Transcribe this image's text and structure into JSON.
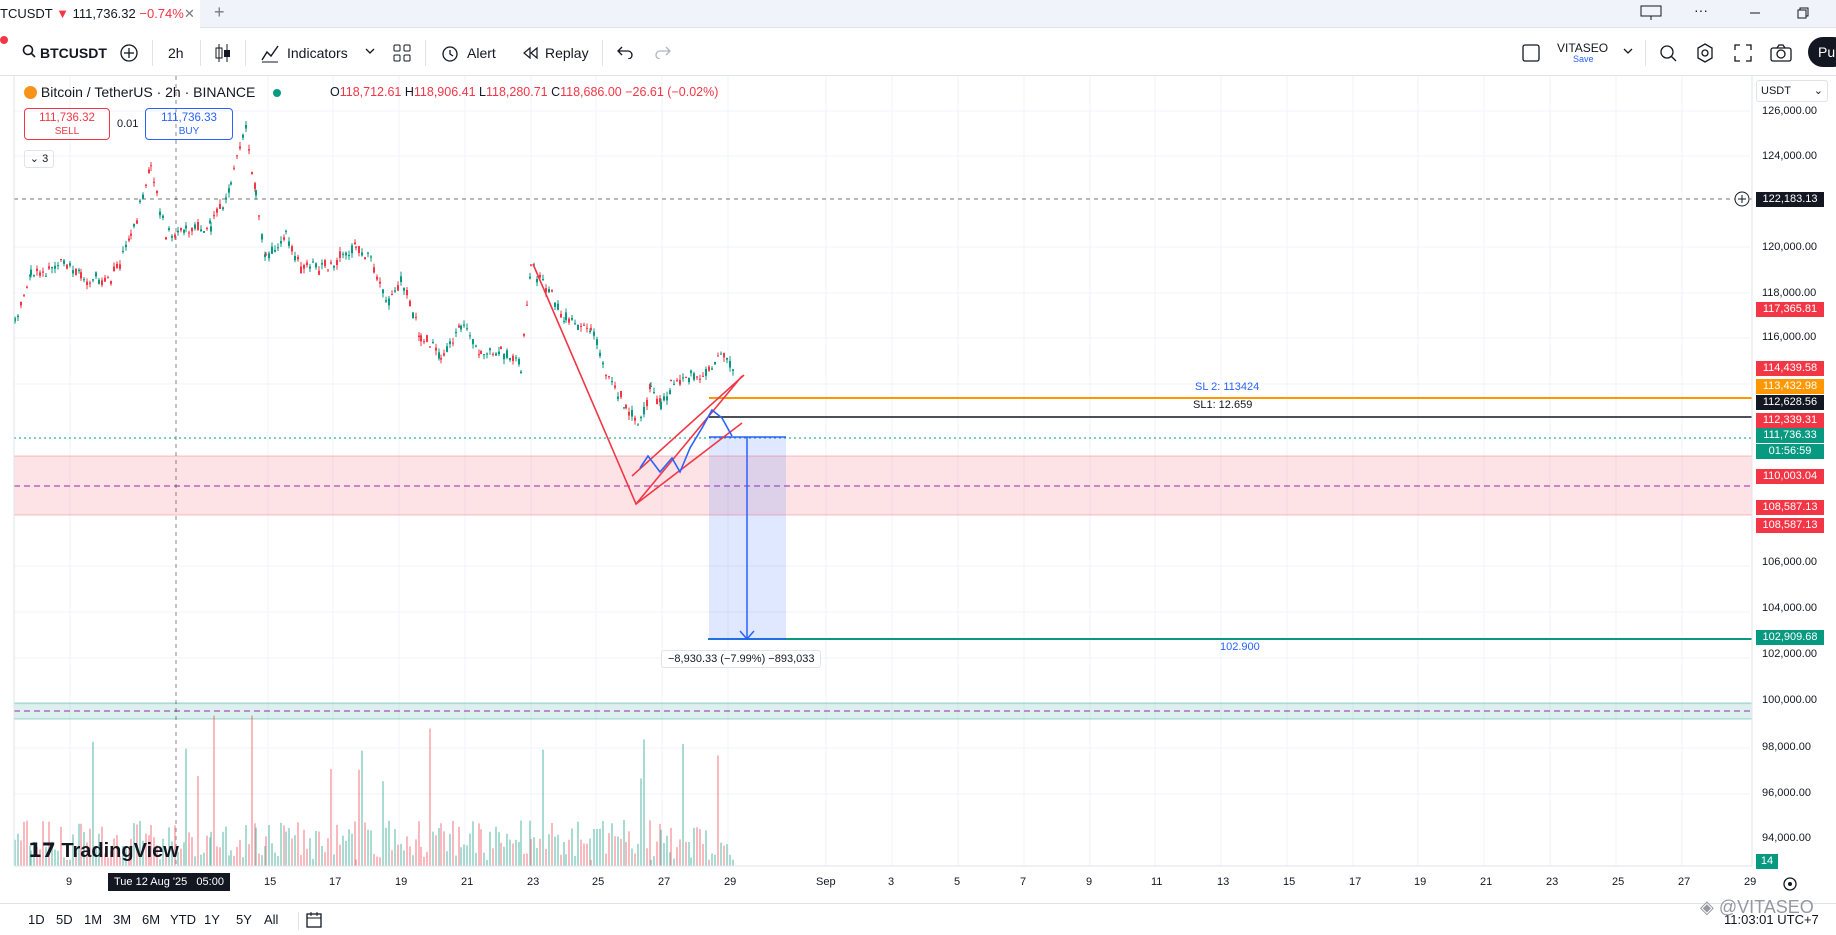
{
  "tab": {
    "symbol": "TCUSDT",
    "arrow": "▼",
    "price": "111,736.32",
    "change": "−0.74%",
    "close": "✕",
    "add": "+"
  },
  "toolbar": {
    "symbol": "BTCUSDT",
    "interval": "2h",
    "indicators": "Indicators",
    "alert": "Alert",
    "replay": "Replay",
    "account_name": "VITASEO",
    "account_sub": "Save",
    "publish": "Pub"
  },
  "legend": {
    "title": "Bitcoin / TetherUS · 2h · BINANCE",
    "o_key": "O",
    "o": "118,712.61",
    "h_key": "H",
    "h": "118,906.41",
    "l_key": "L",
    "l": "118,280.71",
    "c_key": "C",
    "c": "118,686.00",
    "chg": "−26.61 (−0.02%)"
  },
  "trade": {
    "sell_price": "111,736.32",
    "sell_label": "SELL",
    "qty": "0.01",
    "buy_price": "111,736.33",
    "buy_label": "BUY",
    "collapse": "3"
  },
  "currency": "USDT",
  "price_axis": [
    "126,000.00",
    "124,000.00",
    "120,000.00",
    "118,000.00",
    "116,000.00",
    "106,000.00",
    "104,000.00",
    "102,000.00",
    "100,000.00",
    "98,000.00",
    "96,000.00",
    "94,000.00"
  ],
  "price_tags": [
    {
      "label": "122,183.13",
      "color": "#131722"
    },
    {
      "label": "117,365.81",
      "color": "#f23645"
    },
    {
      "label": "114,439.58",
      "color": "#f23645"
    },
    {
      "label": "113,432.98",
      "color": "#ff9800"
    },
    {
      "label": "112,628.56",
      "color": "#131722"
    },
    {
      "label": "112,339.31",
      "color": "#f23645"
    },
    {
      "label": "111,736.33",
      "color": "#089981"
    },
    {
      "label": "01:56:59",
      "color": "#089981"
    },
    {
      "label": "110,003.04",
      "color": "#f23645"
    },
    {
      "label": "108,587.13",
      "color": "#f23645"
    },
    {
      "label": "108,587.13",
      "color": "#f23645"
    },
    {
      "label": "102,909.68",
      "color": "#089981"
    },
    {
      "label": "14",
      "color": "#089981"
    }
  ],
  "annotations": {
    "sl2": "SL 2: 113424",
    "sl1": "SL1: 12.659",
    "target": "102.900",
    "measure": "−8,930.33 (−7.99%) −893,033"
  },
  "time_axis": [
    "9",
    "15",
    "17",
    "19",
    "21",
    "23",
    "25",
    "27",
    "29",
    "Sep",
    "3",
    "5",
    "7",
    "9",
    "11",
    "13",
    "15",
    "17",
    "19",
    "21",
    "23",
    "25",
    "27",
    "29"
  ],
  "crosshair_time": "Tue 12 Aug '25   05:00",
  "ranges": [
    "1D",
    "5D",
    "1M",
    "3M",
    "6M",
    "YTD",
    "1Y",
    "5Y",
    "All"
  ],
  "watermark": "TradingView",
  "clock": "11:03:01 UTC+7",
  "brand": "@VITASEO",
  "colors": {
    "up": "#089981",
    "down": "#f23645",
    "accent": "#2962ff",
    "orange": "#ff9800"
  }
}
